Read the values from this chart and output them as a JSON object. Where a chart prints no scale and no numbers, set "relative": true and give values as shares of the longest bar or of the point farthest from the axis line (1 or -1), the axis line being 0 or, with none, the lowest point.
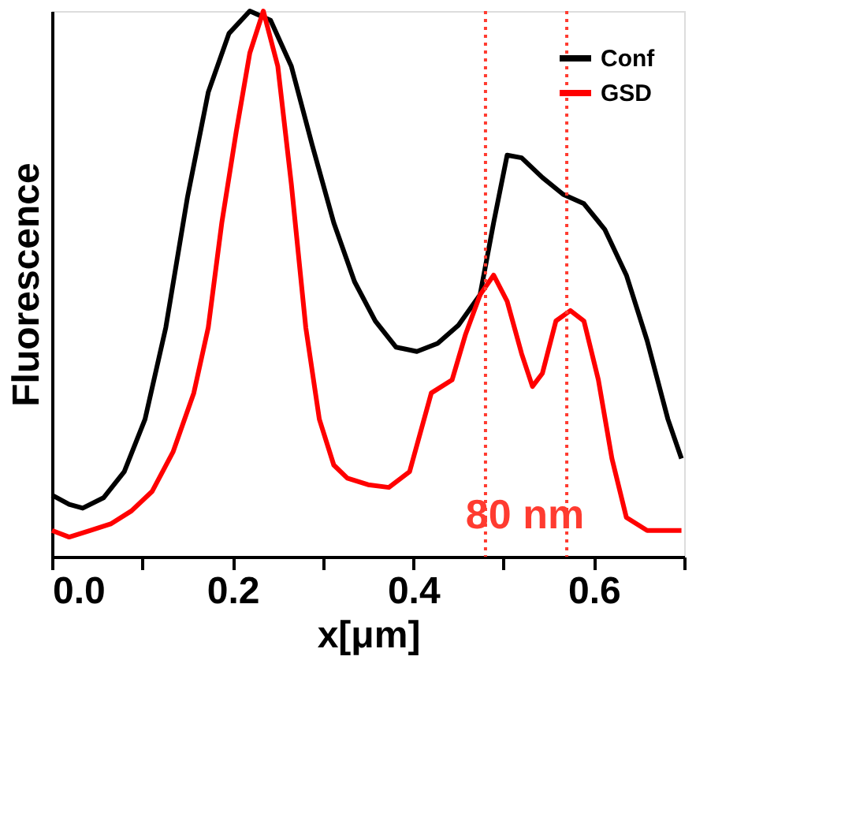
{
  "chart_data": {
    "type": "line",
    "relative": true,
    "xlabel": "x[μm]",
    "ylabel": "Fluorescence",
    "xlim": [
      0,
      0.7
    ],
    "xticks": [
      {
        "value": 0,
        "label": "0.0"
      },
      {
        "value": 0.1,
        "label": null
      },
      {
        "value": 0.2,
        "label": "0.2"
      },
      {
        "value": 0.3,
        "label": null
      },
      {
        "value": 0.4,
        "label": "0.4"
      },
      {
        "value": 0.5,
        "label": null
      },
      {
        "value": 0.6,
        "label": "0.6"
      },
      {
        "value": 0.7,
        "label": null
      }
    ],
    "legend": "top right",
    "grid": false,
    "marker": "none",
    "line_style": "solid",
    "series": [
      {
        "name": "Conf",
        "color": "#000000",
        "x": [
          0.0,
          0.019,
          0.034,
          0.057,
          0.08,
          0.103,
          0.126,
          0.15,
          0.173,
          0.196,
          0.219,
          0.242,
          0.265,
          0.288,
          0.312,
          0.335,
          0.358,
          0.381,
          0.404,
          0.427,
          0.45,
          0.474,
          0.489,
          0.504,
          0.52,
          0.543,
          0.566,
          0.589,
          0.612,
          0.636,
          0.659,
          0.682,
          0.697
        ],
        "values": [
          0.113,
          0.096,
          0.089,
          0.108,
          0.156,
          0.252,
          0.42,
          0.659,
          0.851,
          0.959,
          1.0,
          0.983,
          0.899,
          0.755,
          0.612,
          0.504,
          0.432,
          0.384,
          0.376,
          0.391,
          0.424,
          0.48,
          0.612,
          0.736,
          0.731,
          0.695,
          0.664,
          0.647,
          0.6,
          0.516,
          0.396,
          0.252,
          0.18
        ]
      },
      {
        "name": "GSD",
        "color": "#ff0000",
        "x": [
          0.0,
          0.019,
          0.042,
          0.065,
          0.088,
          0.111,
          0.134,
          0.157,
          0.173,
          0.188,
          0.204,
          0.219,
          0.234,
          0.25,
          0.265,
          0.281,
          0.296,
          0.312,
          0.327,
          0.35,
          0.373,
          0.396,
          0.42,
          0.443,
          0.458,
          0.474,
          0.489,
          0.504,
          0.52,
          0.532,
          0.543,
          0.558,
          0.574,
          0.589,
          0.605,
          0.62,
          0.636,
          0.659,
          0.697
        ],
        "values": [
          0.048,
          0.036,
          0.048,
          0.06,
          0.084,
          0.12,
          0.192,
          0.3,
          0.42,
          0.612,
          0.779,
          0.923,
          1.0,
          0.899,
          0.683,
          0.42,
          0.252,
          0.168,
          0.144,
          0.132,
          0.127,
          0.156,
          0.3,
          0.324,
          0.408,
          0.48,
          0.516,
          0.468,
          0.372,
          0.312,
          0.336,
          0.432,
          0.451,
          0.432,
          0.324,
          0.18,
          0.072,
          0.048,
          0.048
        ]
      }
    ],
    "ref_lines": [
      {
        "axis": "x",
        "value": 0.48,
        "label": null,
        "color": "#ff3b30",
        "line_style": "dotted"
      },
      {
        "axis": "x",
        "value": 0.57,
        "label": null,
        "color": "#ff3b30",
        "line_style": "dotted"
      }
    ],
    "annotations": [
      "80 nm"
    ]
  }
}
